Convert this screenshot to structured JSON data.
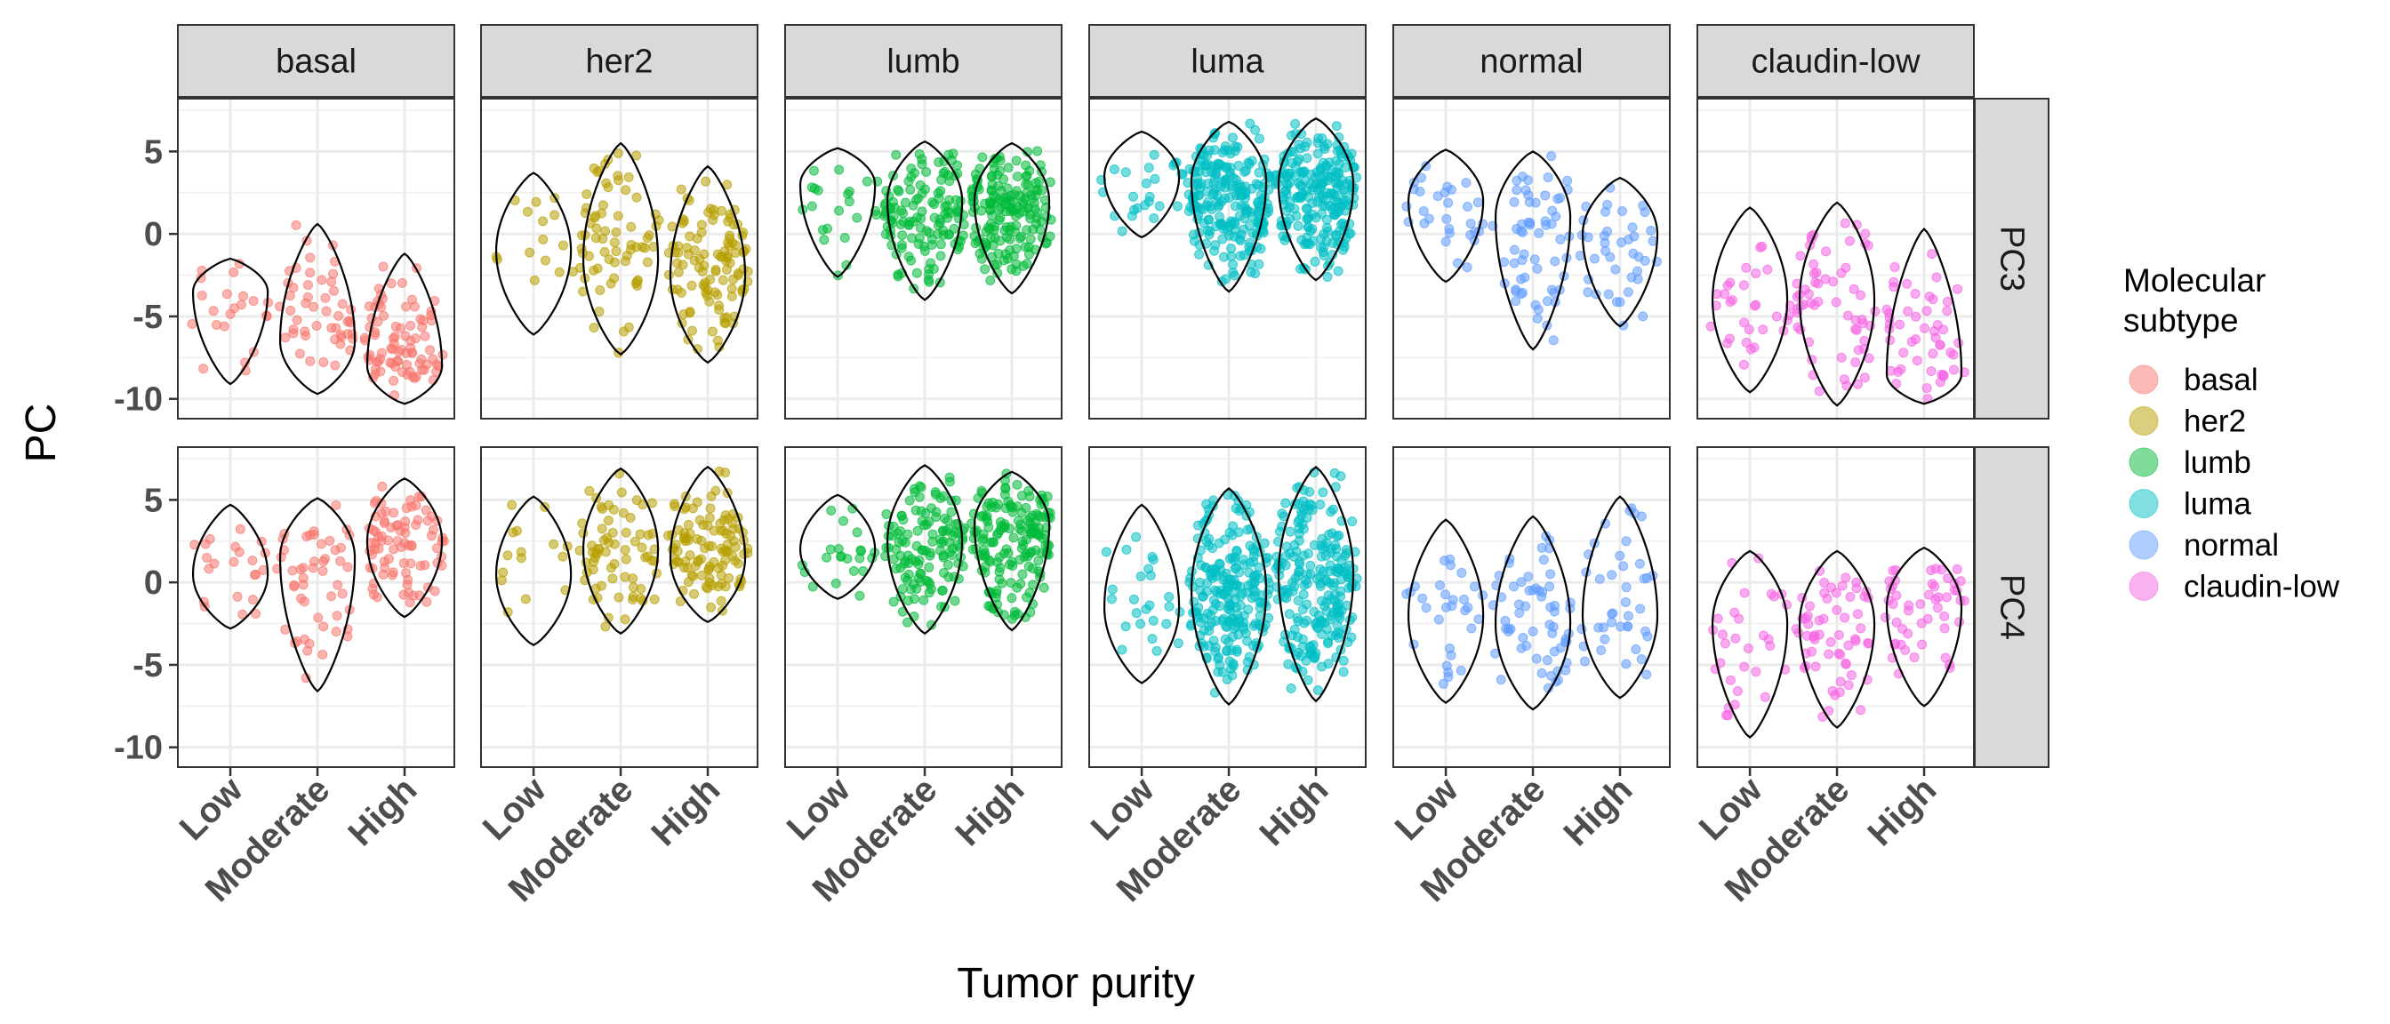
{
  "chart_data": {
    "type": "violin-jitter",
    "xlabel": "Tumor purity",
    "ylabel": "PC",
    "ylim": [
      -11.2,
      8.2
    ],
    "y_ticks": [
      -10,
      -5,
      0,
      5
    ],
    "y_tick_labels": [
      "-10",
      "-5",
      "0",
      "5"
    ],
    "categories": [
      "Low",
      "Moderate",
      "High"
    ],
    "facet_columns": [
      "basal",
      "her2",
      "lumb",
      "luma",
      "normal",
      "claudin-low"
    ],
    "facet_rows": [
      "PC3",
      "PC4"
    ],
    "legend": {
      "title_lines": [
        "Molecular",
        "subtype"
      ],
      "position": "right",
      "entries": [
        {
          "label": "basal",
          "color": "#F8766D"
        },
        {
          "label": "her2",
          "color": "#B79F00"
        },
        {
          "label": "lumb",
          "color": "#00BA38"
        },
        {
          "label": "luma",
          "color": "#00BFC4"
        },
        {
          "label": "normal",
          "color": "#619CFF"
        },
        {
          "label": "claudin-low",
          "color": "#F564E3"
        }
      ]
    },
    "grid": true,
    "panels": [
      {
        "row": "PC3",
        "col": "basal",
        "violins": [
          {
            "category": "Low",
            "min": -9.1,
            "max": -1.5,
            "mode": -3.5,
            "n": 22
          },
          {
            "category": "Moderate",
            "min": -9.7,
            "max": 0.6,
            "mode": -6.5,
            "n": 50
          },
          {
            "category": "High",
            "min": -10.3,
            "max": -1.2,
            "mode": -8.0,
            "n": 85
          }
        ]
      },
      {
        "row": "PC3",
        "col": "her2",
        "violins": [
          {
            "category": "Low",
            "min": -6.1,
            "max": 3.7,
            "mode": -1.0,
            "n": 15
          },
          {
            "category": "Moderate",
            "min": -7.3,
            "max": 5.5,
            "mode": -1.5,
            "n": 70
          },
          {
            "category": "High",
            "min": -7.8,
            "max": 4.1,
            "mode": -2.5,
            "n": 110
          }
        ]
      },
      {
        "row": "PC3",
        "col": "lumb",
        "violins": [
          {
            "category": "Low",
            "min": -2.6,
            "max": 5.2,
            "mode": 3.0,
            "n": 22
          },
          {
            "category": "Moderate",
            "min": -4.0,
            "max": 5.6,
            "mode": 2.0,
            "n": 130
          },
          {
            "category": "High",
            "min": -3.6,
            "max": 5.5,
            "mode": 2.0,
            "n": 170
          }
        ]
      },
      {
        "row": "PC3",
        "col": "luma",
        "violins": [
          {
            "category": "Low",
            "min": -0.2,
            "max": 6.2,
            "mode": 3.5,
            "n": 25
          },
          {
            "category": "Moderate",
            "min": -3.5,
            "max": 6.8,
            "mode": 3.2,
            "n": 230
          },
          {
            "category": "High",
            "min": -2.8,
            "max": 7.0,
            "mode": 3.0,
            "n": 230
          }
        ]
      },
      {
        "row": "PC3",
        "col": "normal",
        "violins": [
          {
            "category": "Low",
            "min": -2.9,
            "max": 5.1,
            "mode": 2.0,
            "n": 30
          },
          {
            "category": "Moderate",
            "min": -7.0,
            "max": 5.0,
            "mode": 1.0,
            "n": 60
          },
          {
            "category": "High",
            "min": -5.6,
            "max": 3.4,
            "mode": 0.0,
            "n": 40
          }
        ]
      },
      {
        "row": "PC3",
        "col": "claudin-low",
        "violins": [
          {
            "category": "Low",
            "min": -9.6,
            "max": 1.6,
            "mode": -4.0,
            "n": 30
          },
          {
            "category": "Moderate",
            "min": -10.4,
            "max": 1.9,
            "mode": -4.0,
            "n": 60
          },
          {
            "category": "High",
            "min": -10.3,
            "max": 0.3,
            "mode": -8.5,
            "n": 50
          }
        ]
      },
      {
        "row": "PC4",
        "col": "basal",
        "violins": [
          {
            "category": "Low",
            "min": -2.8,
            "max": 4.7,
            "mode": 0.5,
            "n": 22
          },
          {
            "category": "Moderate",
            "min": -6.6,
            "max": 5.1,
            "mode": 1.5,
            "n": 50
          },
          {
            "category": "High",
            "min": -2.1,
            "max": 6.3,
            "mode": 2.5,
            "n": 85
          }
        ]
      },
      {
        "row": "PC4",
        "col": "her2",
        "violins": [
          {
            "category": "Low",
            "min": -3.8,
            "max": 5.2,
            "mode": 0.5,
            "n": 15
          },
          {
            "category": "Moderate",
            "min": -3.1,
            "max": 6.9,
            "mode": 2.0,
            "n": 70
          },
          {
            "category": "High",
            "min": -2.4,
            "max": 7.0,
            "mode": 1.5,
            "n": 110
          }
        ]
      },
      {
        "row": "PC4",
        "col": "lumb",
        "violins": [
          {
            "category": "Low",
            "min": -1.0,
            "max": 5.3,
            "mode": 2.0,
            "n": 22
          },
          {
            "category": "Moderate",
            "min": -3.1,
            "max": 7.1,
            "mode": 2.5,
            "n": 130
          },
          {
            "category": "High",
            "min": -2.9,
            "max": 6.7,
            "mode": 3.5,
            "n": 170
          }
        ]
      },
      {
        "row": "PC4",
        "col": "luma",
        "violins": [
          {
            "category": "Low",
            "min": -6.1,
            "max": 4.7,
            "mode": -1.5,
            "n": 25
          },
          {
            "category": "Moderate",
            "min": -7.4,
            "max": 5.7,
            "mode": -0.5,
            "n": 230
          },
          {
            "category": "High",
            "min": -7.2,
            "max": 7.0,
            "mode": 0.5,
            "n": 230
          }
        ]
      },
      {
        "row": "PC4",
        "col": "normal",
        "violins": [
          {
            "category": "Low",
            "min": -7.3,
            "max": 3.8,
            "mode": -2.0,
            "n": 30
          },
          {
            "category": "Moderate",
            "min": -7.7,
            "max": 4.0,
            "mode": -2.5,
            "n": 60
          },
          {
            "category": "High",
            "min": -7.0,
            "max": 5.2,
            "mode": -2.0,
            "n": 40
          }
        ]
      },
      {
        "row": "PC4",
        "col": "claudin-low",
        "violins": [
          {
            "category": "Low",
            "min": -9.4,
            "max": 1.9,
            "mode": -2.5,
            "n": 30
          },
          {
            "category": "Moderate",
            "min": -8.8,
            "max": 1.9,
            "mode": -2.5,
            "n": 60
          },
          {
            "category": "High",
            "min": -7.5,
            "max": 2.1,
            "mode": -1.5,
            "n": 50
          }
        ]
      }
    ]
  }
}
